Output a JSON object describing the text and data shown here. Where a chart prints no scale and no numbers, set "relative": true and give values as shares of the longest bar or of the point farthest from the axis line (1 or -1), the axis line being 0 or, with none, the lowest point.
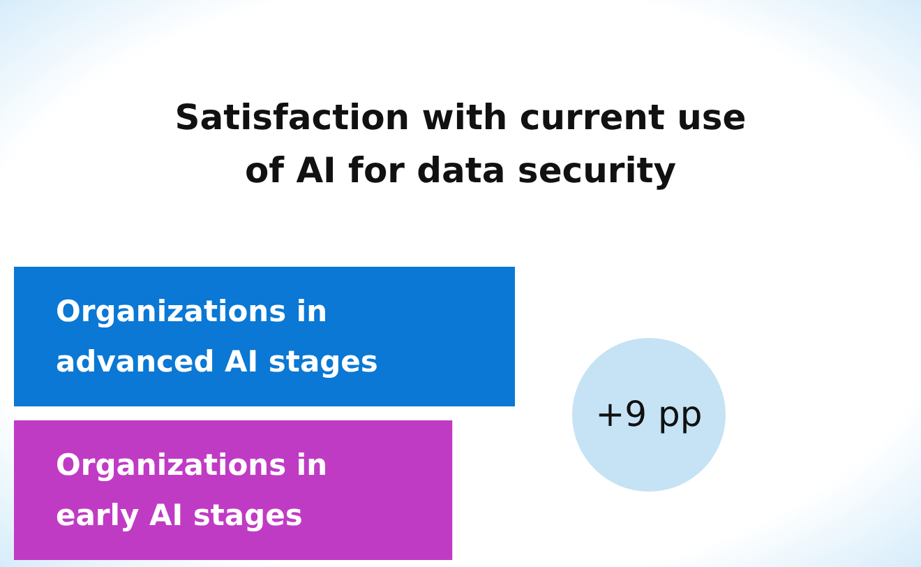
{
  "chart_data": {
    "type": "bar",
    "orientation": "horizontal",
    "relative": true,
    "title": "Satisfaction with current use\nof AI for data security",
    "categories": [
      "Organizations in advanced AI stages",
      "Organizations in early AI stages"
    ],
    "values": [
      1,
      0.875
    ],
    "colors": [
      "#0a78d4",
      "#c03bc4"
    ],
    "annotations": [
      "+9 pp"
    ]
  }
}
